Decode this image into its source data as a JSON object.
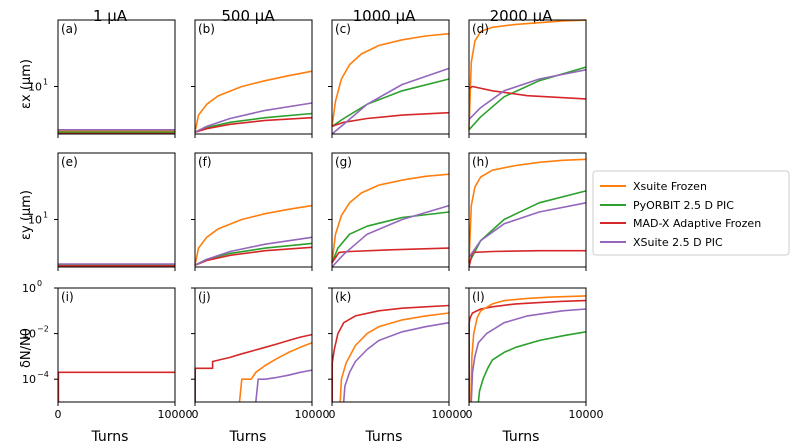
{
  "column_titles": [
    "1 μA",
    "500 μA",
    "1000 μA",
    "2000 μA"
  ],
  "row_ylabels": [
    "εx (μm)",
    "εy (μm)",
    "δN/N0"
  ],
  "xlabel": "Turns",
  "panel_labels": [
    "(a)",
    "(b)",
    "(c)",
    "(d)",
    "(e)",
    "(f)",
    "(g)",
    "(h)",
    "(i)",
    "(j)",
    "(k)",
    "(l)"
  ],
  "x_ticks": [
    "0",
    "10000"
  ],
  "emit_tick_label": "10",
  "emit_tick_exp": "1",
  "loss_tick_labels": [
    {
      "base": "10",
      "exp": "0"
    },
    {
      "base": "10",
      "exp": "−2"
    },
    {
      "base": "10",
      "exp": "−4"
    }
  ],
  "colors": {
    "Xsuite Frozen": "#ff7f0e",
    "PyORBIT 2.5 D PIC": "#2ca02c",
    "MAD-X Adaptive Frozen": "#d62728",
    "XSuite 2.5 D PIC": "#9467bd"
  },
  "legend": [
    "Xsuite Frozen",
    "PyORBIT 2.5 D PIC",
    "MAD-X Adaptive Frozen",
    "XSuite 2.5 D PIC"
  ],
  "chart_data": {
    "type": "line",
    "x_unit": "Turns",
    "xlim": [
      0,
      10000
    ],
    "emittance_ylim_log10": [
      0.5,
      1.7
    ],
    "loss_ylim_log10": [
      -5,
      0
    ],
    "panels": [
      {
        "id": "(a)",
        "quantity": "εx (μm)",
        "intensity": "1 μA",
        "series": [
          {
            "name": "Xsuite Frozen",
            "x": [
              0,
              10000
            ],
            "y": [
              3.4,
              3.4
            ]
          },
          {
            "name": "PyORBIT 2.5 D PIC",
            "x": [
              0,
              10000
            ],
            "y": [
              3.3,
              3.3
            ]
          },
          {
            "name": "MAD-X Adaptive Frozen",
            "x": [
              0,
              10000
            ],
            "y": [
              3.2,
              3.2
            ]
          },
          {
            "name": "XSuite 2.5 D PIC",
            "x": [
              0,
              10000
            ],
            "y": [
              3.5,
              3.5
            ]
          }
        ]
      },
      {
        "id": "(b)",
        "quantity": "εx (μm)",
        "intensity": "500 μA",
        "series": [
          {
            "name": "Xsuite Frozen",
            "x": [
              0,
              300,
              1000,
              2000,
              4000,
              6000,
              8000,
              10000
            ],
            "y": [
              3.3,
              5.0,
              6.5,
              8.0,
              10.0,
              11.5,
              13.0,
              14.5
            ]
          },
          {
            "name": "PyORBIT 2.5 D PIC",
            "x": [
              0,
              1000,
              3000,
              6000,
              10000
            ],
            "y": [
              3.3,
              3.7,
              4.2,
              4.7,
              5.2
            ]
          },
          {
            "name": "MAD-X Adaptive Frozen",
            "x": [
              0,
              1000,
              3000,
              6000,
              10000
            ],
            "y": [
              3.3,
              3.6,
              4.0,
              4.4,
              4.7
            ]
          },
          {
            "name": "XSuite 2.5 D PIC",
            "x": [
              0,
              1000,
              3000,
              6000,
              10000
            ],
            "y": [
              3.3,
              3.8,
              4.6,
              5.6,
              6.7
            ]
          }
        ]
      },
      {
        "id": "(c)",
        "quantity": "εx (μm)",
        "intensity": "1000 μA",
        "series": [
          {
            "name": "Xsuite Frozen",
            "x": [
              0,
              300,
              800,
              1500,
              2500,
              4000,
              6000,
              8000,
              10000
            ],
            "y": [
              3.8,
              7.0,
              12.0,
              17.0,
              22.0,
              27.0,
              31.0,
              34.0,
              36.0
            ]
          },
          {
            "name": "PyORBIT 2.5 D PIC",
            "x": [
              0,
              1000,
              3000,
              6000,
              10000
            ],
            "y": [
              3.8,
              4.6,
              6.5,
              9.0,
              12.0
            ]
          },
          {
            "name": "MAD-X Adaptive Frozen",
            "x": [
              0,
              1000,
              3000,
              6000,
              10000
            ],
            "y": [
              3.8,
              4.2,
              4.6,
              5.0,
              5.3
            ]
          },
          {
            "name": "XSuite 2.5 D PIC",
            "x": [
              0,
              1000,
              3000,
              6000,
              10000
            ],
            "y": [
              3.0,
              4.0,
              6.5,
              10.5,
              15.5
            ]
          }
        ]
      },
      {
        "id": "(d)",
        "quantity": "εx (μm)",
        "intensity": "2000 μA",
        "series": [
          {
            "name": "Xsuite Frozen",
            "x": [
              0,
              200,
              500,
              1000,
              2000,
              4000,
              6000,
              8000,
              10000
            ],
            "y": [
              3.5,
              18.0,
              30.0,
              38.0,
              42.0,
              45.0,
              47.0,
              49.0,
              50.0
            ]
          },
          {
            "name": "PyORBIT 2.5 D PIC",
            "x": [
              0,
              1000,
              3000,
              6000,
              10000
            ],
            "y": [
              3.5,
              4.8,
              7.8,
              11.5,
              16.0
            ]
          },
          {
            "name": "MAD-X Adaptive Frozen",
            "x": [
              0,
              300,
              2000,
              5000,
              10000
            ],
            "y": [
              9.5,
              10.0,
              9.0,
              8.0,
              7.4
            ]
          },
          {
            "name": "XSuite 2.5 D PIC",
            "x": [
              0,
              1000,
              3000,
              6000,
              10000
            ],
            "y": [
              4.5,
              6.0,
              9.0,
              12.0,
              15.0
            ]
          }
        ]
      },
      {
        "id": "(e)",
        "quantity": "εy (μm)",
        "intensity": "1 μA",
        "series": [
          {
            "name": "Xsuite Frozen",
            "x": [
              0,
              10000
            ],
            "y": [
              3.35,
              3.35
            ]
          },
          {
            "name": "PyORBIT 2.5 D PIC",
            "x": [
              0,
              10000
            ],
            "y": [
              3.3,
              3.3
            ]
          },
          {
            "name": "MAD-X Adaptive Frozen",
            "x": [
              0,
              10000
            ],
            "y": [
              3.25,
              3.25
            ]
          },
          {
            "name": "XSuite 2.5 D PIC",
            "x": [
              0,
              10000
            ],
            "y": [
              3.4,
              3.4
            ]
          }
        ]
      },
      {
        "id": "(f)",
        "quantity": "εy (μm)",
        "intensity": "500 μA",
        "series": [
          {
            "name": "Xsuite Frozen",
            "x": [
              0,
              300,
              1000,
              2000,
              4000,
              6000,
              8000,
              10000
            ],
            "y": [
              3.3,
              5.0,
              6.5,
              8.0,
              10.0,
              11.5,
              12.8,
              14.0
            ]
          },
          {
            "name": "PyORBIT 2.5 D PIC",
            "x": [
              0,
              1000,
              3000,
              6000,
              10000
            ],
            "y": [
              3.3,
              3.8,
              4.4,
              5.0,
              5.6
            ]
          },
          {
            "name": "MAD-X Adaptive Frozen",
            "x": [
              0,
              1000,
              3000,
              6000,
              10000
            ],
            "y": [
              3.3,
              3.7,
              4.2,
              4.7,
              5.1
            ]
          },
          {
            "name": "XSuite 2.5 D PIC",
            "x": [
              0,
              1000,
              3000,
              6000,
              10000
            ],
            "y": [
              3.3,
              3.8,
              4.6,
              5.5,
              6.5
            ]
          }
        ]
      },
      {
        "id": "(g)",
        "quantity": "εy (μm)",
        "intensity": "1000 μA",
        "series": [
          {
            "name": "Xsuite Frozen",
            "x": [
              0,
              300,
              800,
              1500,
              2500,
              4000,
              6000,
              8000,
              10000
            ],
            "y": [
              3.5,
              7.0,
              11.0,
              15.0,
              19.0,
              23.0,
              26.0,
              28.5,
              30.0
            ]
          },
          {
            "name": "PyORBIT 2.5 D PIC",
            "x": [
              0,
              500,
              1500,
              3000,
              6000,
              10000
            ],
            "y": [
              3.5,
              5.0,
              7.0,
              8.5,
              10.5,
              12.0
            ]
          },
          {
            "name": "MAD-X Adaptive Frozen",
            "x": [
              0,
              600,
              1500,
              5000,
              10000
            ],
            "y": [
              3.5,
              4.5,
              4.6,
              4.8,
              5.0
            ]
          },
          {
            "name": "XSuite 2.5 D PIC",
            "x": [
              0,
              1000,
              3000,
              6000,
              10000
            ],
            "y": [
              3.0,
              4.3,
              7.0,
              10.0,
              14.0
            ]
          }
        ]
      },
      {
        "id": "(h)",
        "quantity": "εy (μm)",
        "intensity": "2000 μA",
        "series": [
          {
            "name": "Xsuite Frozen",
            "x": [
              0,
              200,
              500,
              1000,
              2000,
              4000,
              6000,
              8000,
              10000
            ],
            "y": [
              3.5,
              14.0,
              22.0,
              28.0,
              33.0,
              37.0,
              40.0,
              42.0,
              43.0
            ]
          },
          {
            "name": "PyORBIT 2.5 D PIC",
            "x": [
              0,
              1000,
              3000,
              6000,
              10000
            ],
            "y": [
              3.5,
              6.0,
              10.0,
              15.0,
              20.0
            ]
          },
          {
            "name": "MAD-X Adaptive Frozen",
            "x": [
              0,
              300,
              2000,
              6000,
              10000
            ],
            "y": [
              3.0,
              4.5,
              4.6,
              4.7,
              4.7
            ]
          },
          {
            "name": "XSuite 2.5 D PIC",
            "x": [
              0,
              1000,
              3000,
              6000,
              10000
            ],
            "y": [
              4.0,
              6.0,
              9.0,
              12.0,
              15.0
            ]
          }
        ]
      },
      {
        "id": "(i)",
        "quantity": "δN/N0",
        "intensity": "1 μA",
        "series": [
          {
            "name": "MAD-X Adaptive Frozen",
            "x": [
              0,
              30,
              30,
              10000
            ],
            "y": [
              1e-05,
              1e-05,
              0.0002,
              0.0002
            ]
          }
        ]
      },
      {
        "id": "(j)",
        "quantity": "δN/N0",
        "intensity": "500 μA",
        "series": [
          {
            "name": "MAD-X Adaptive Frozen",
            "x": [
              0,
              20,
              20,
              1500,
              1500,
              3000,
              4000,
              5000,
              6000,
              7000,
              8000,
              9000,
              10000
            ],
            "y": [
              1e-05,
              1e-05,
              0.0003,
              0.0003,
              0.0006,
              0.0009,
              0.0013,
              0.0018,
              0.0025,
              0.0035,
              0.005,
              0.007,
              0.009
            ]
          },
          {
            "name": "Xsuite Frozen",
            "x": [
              3800,
              4000,
              4200,
              4800,
              5200,
              6000,
              7000,
              8000,
              9000,
              10000
            ],
            "y": [
              1e-05,
              0.0001,
              0.0001,
              0.0001,
              0.0002,
              0.0004,
              0.0008,
              0.0015,
              0.0025,
              0.004
            ]
          },
          {
            "name": "XSuite 2.5 D PIC",
            "x": [
              5200,
              5400,
              6000,
              7000,
              8000,
              9000,
              10000
            ],
            "y": [
              1e-05,
              0.0001,
              0.0001,
              0.00012,
              0.00015,
              0.0002,
              0.00025
            ]
          }
        ]
      },
      {
        "id": "(k)",
        "quantity": "δN/N0",
        "intensity": "1000 μA",
        "series": [
          {
            "name": "MAD-X Adaptive Frozen",
            "x": [
              0,
              20,
              20,
              200,
              500,
              1000,
              2000,
              4000,
              6000,
              8000,
              10000
            ],
            "y": [
              1e-05,
              1e-05,
              0.0005,
              0.002,
              0.01,
              0.03,
              0.06,
              0.1,
              0.13,
              0.15,
              0.17
            ]
          },
          {
            "name": "Xsuite Frozen",
            "x": [
              700,
              800,
              1200,
              2000,
              3000,
              4000,
              6000,
              8000,
              10000
            ],
            "y": [
              1e-05,
              0.0001,
              0.0005,
              0.003,
              0.01,
              0.02,
              0.04,
              0.06,
              0.08
            ]
          },
          {
            "name": "XSuite 2.5 D PIC",
            "x": [
              1000,
              1100,
              1500,
              2000,
              3000,
              4000,
              6000,
              8000,
              10000
            ],
            "y": [
              1e-05,
              5e-05,
              0.0002,
              0.0006,
              0.002,
              0.005,
              0.012,
              0.02,
              0.03
            ]
          }
        ]
      },
      {
        "id": "(l)",
        "quantity": "δN/N0",
        "intensity": "2000 μA",
        "series": [
          {
            "name": "MAD-X Adaptive Frozen",
            "x": [
              0,
              20,
              20,
              100,
              300,
              1000,
              2000,
              4000,
              6000,
              8000,
              10000
            ],
            "y": [
              1e-05,
              1e-05,
              0.03,
              0.05,
              0.08,
              0.12,
              0.15,
              0.2,
              0.23,
              0.26,
              0.28
            ]
          },
          {
            "name": "Xsuite Frozen",
            "x": [
              150,
              250,
              400,
              700,
              1000,
              2000,
              3000,
              5000,
              7000,
              10000
            ],
            "y": [
              1e-05,
              0.001,
              0.01,
              0.05,
              0.1,
              0.2,
              0.28,
              0.35,
              0.4,
              0.45
            ]
          },
          {
            "name": "XSuite 2.5 D PIC",
            "x": [
              200,
              300,
              500,
              800,
              1500,
              3000,
              5000,
              8000,
              10000
            ],
            "y": [
              1e-05,
              0.0002,
              0.001,
              0.004,
              0.01,
              0.03,
              0.06,
              0.1,
              0.12
            ]
          },
          {
            "name": "PyORBIT 2.5 D PIC",
            "x": [
              800,
              900,
              1200,
              1600,
              2000,
              3000,
              4000,
              6000,
              8000,
              10000
            ],
            "y": [
              1e-05,
              3e-05,
              0.0001,
              0.0003,
              0.0007,
              0.0015,
              0.0025,
              0.005,
              0.008,
              0.012
            ]
          }
        ]
      }
    ]
  }
}
